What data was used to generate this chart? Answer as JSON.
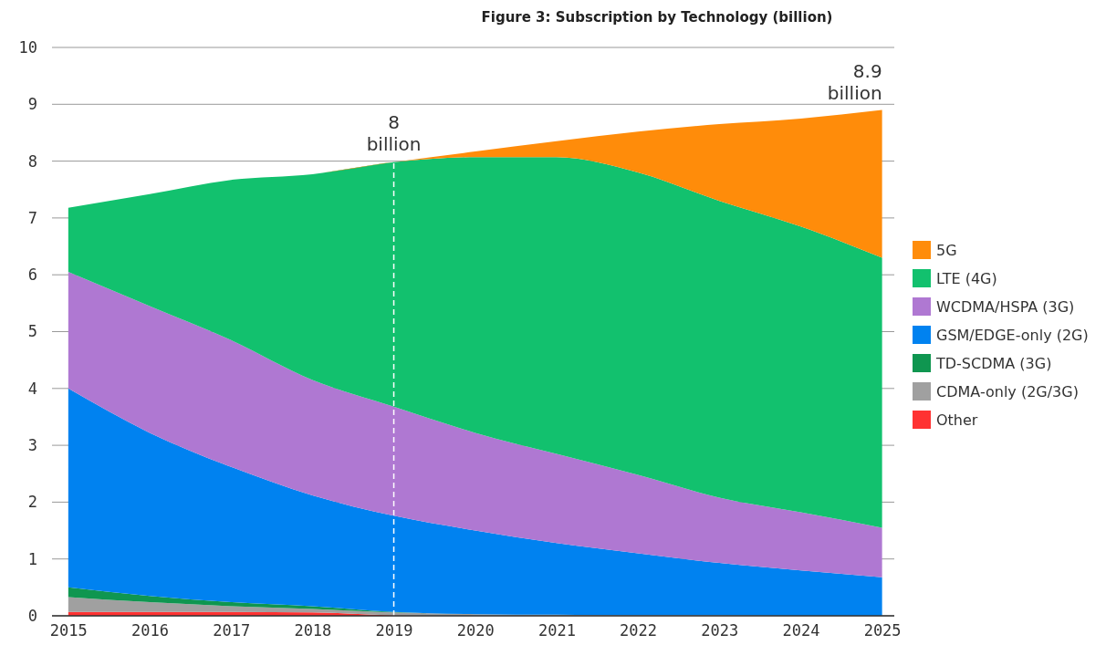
{
  "chart_data": {
    "type": "area",
    "stacked": true,
    "title": "Figure 3: Subscription by Technology (billion)",
    "x": [
      2015,
      2016,
      2017,
      2018,
      2019,
      2020,
      2021,
      2022,
      2023,
      2024,
      2025
    ],
    "series": [
      {
        "name": "Other",
        "color": "#ff3232",
        "values": [
          0.07,
          0.07,
          0.07,
          0.06,
          0.01,
          0,
          0,
          0,
          0,
          0,
          0
        ]
      },
      {
        "name": "CDMA-only (2G/3G)",
        "color": "#a0a0a0",
        "values": [
          0.26,
          0.17,
          0.1,
          0.06,
          0.05,
          0.03,
          0.02,
          0.01,
          0.01,
          0,
          0
        ]
      },
      {
        "name": "TD-SCDMA (3G)",
        "color": "#0f9650",
        "values": [
          0.17,
          0.11,
          0.07,
          0.05,
          0.01,
          0,
          0,
          0,
          0,
          0,
          0
        ]
      },
      {
        "name": "GSM/EDGE-only (2G)",
        "color": "#0082f0",
        "values": [
          3.5,
          2.87,
          2.38,
          1.95,
          1.69,
          1.47,
          1.26,
          1.09,
          0.92,
          0.8,
          0.68
        ]
      },
      {
        "name": "WCDMA/HSPA (3G)",
        "color": "#af78d2",
        "values": [
          2.05,
          2.23,
          2.23,
          2.03,
          1.92,
          1.72,
          1.57,
          1.38,
          1.15,
          1.02,
          0.87
        ]
      },
      {
        "name": "LTE (4G)",
        "color": "#12c16e",
        "values": [
          1.13,
          1.97,
          2.82,
          3.62,
          4.3,
          4.85,
          5.22,
          5.32,
          5.22,
          5.03,
          4.75
        ]
      },
      {
        "name": "5G",
        "color": "#ff8c0a",
        "values": [
          0,
          0,
          0,
          0,
          0,
          0.1,
          0.28,
          0.72,
          1.35,
          1.9,
          2.6
        ]
      }
    ],
    "xlim": [
      2014.8,
      2025.15
    ],
    "xticks": [
      2015,
      2016,
      2017,
      2018,
      2019,
      2020,
      2021,
      2022,
      2023,
      2024,
      2025
    ],
    "ylim": [
      0,
      10
    ],
    "yticks": [
      0,
      1,
      2,
      3,
      4,
      5,
      6,
      7,
      8,
      9,
      10
    ],
    "grid": "y",
    "legend": "right",
    "ref_lines": [
      {
        "axis": "x",
        "value": 2019,
        "color": "#ffffff",
        "line_style": "dashed"
      }
    ],
    "annotations": [
      {
        "text": "8 billion",
        "x": 2019,
        "y": 8
      },
      {
        "text": "8.9 billion",
        "x": 2025,
        "y": 8.9
      }
    ]
  }
}
